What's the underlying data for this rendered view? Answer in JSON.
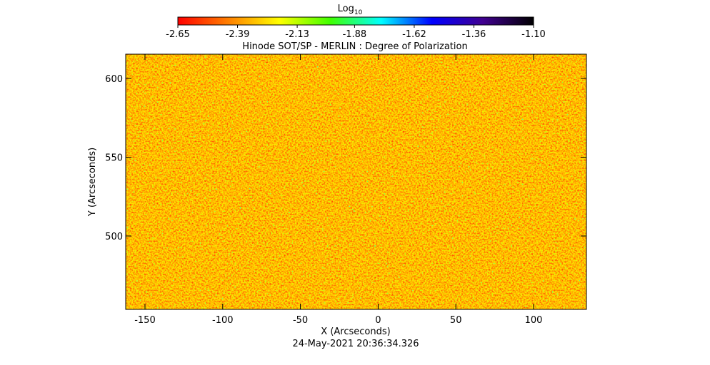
{
  "chart_data": {
    "type": "heatmap",
    "title": "Hinode SOT/SP - MERLIN : Degree of Polarization",
    "x_label": "X (Arcseconds)",
    "y_label": "Y (Arcseconds)",
    "date": "24-May-2021 20:36:34.326",
    "xlim": [
      -162.4,
      134
    ],
    "xticks": [
      -150,
      -100,
      -50,
      0,
      50,
      100
    ],
    "ylim": [
      453.4,
      615.4
    ],
    "yticks": [
      500,
      550,
      600
    ],
    "colorbar": {
      "label": "Log",
      "label_sub": "10",
      "clim": [
        -2.65,
        -1.1
      ],
      "ticks": [
        -2.65,
        -2.39,
        -2.13,
        -1.88,
        -1.62,
        -1.36,
        {
          "value": -1.1,
          "label": "-1.10"
        }
      ],
      "colormap": [
        "#ff0000",
        "#ff8000",
        "#ffff00",
        "#40ff00",
        "#00ffff",
        "#0000ff",
        "#400090",
        "#000000"
      ]
    }
  }
}
